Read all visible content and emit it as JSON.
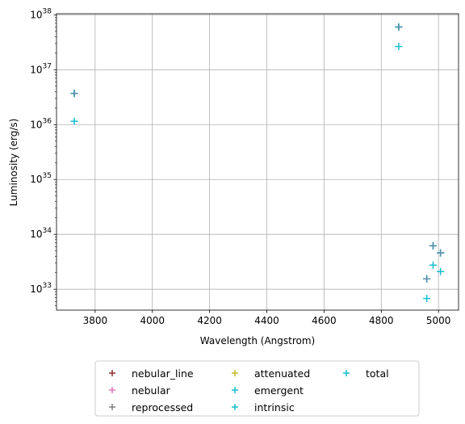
{
  "chart_data": {
    "type": "scatter",
    "xlabel": "Wavelength (Angstrom)",
    "ylabel": "Luminosity (erg/s)",
    "xlim": [
      3665,
      5070
    ],
    "ylog": true,
    "ylim_exp": [
      32.62,
      38.02
    ],
    "grid": true,
    "legend_position": "below",
    "x_ticks": [
      3800,
      4000,
      4200,
      4400,
      4600,
      4800,
      5000
    ],
    "x_tick_labels": [
      "3800",
      "4000",
      "4200",
      "4400",
      "4600",
      "4800",
      "5000"
    ],
    "y_ticks_exp": [
      33,
      34,
      35,
      36,
      37,
      38
    ],
    "y_tick_base": "10",
    "y_tick_exps": [
      "33",
      "34",
      "35",
      "36",
      "37",
      "38"
    ],
    "series": [
      {
        "name": "nebular_line",
        "color": "#8c2d2d",
        "x": [],
        "y": []
      },
      {
        "name": "nebular",
        "color": "#e377c2",
        "x": [],
        "y": []
      },
      {
        "name": "reprocessed",
        "color": "#7f7f7f",
        "x": [],
        "y": []
      },
      {
        "name": "attenuated",
        "color": "#bcbd22",
        "x": [],
        "y": []
      },
      {
        "name": "emergent",
        "color": "#17becf",
        "x": [
          3727,
          4861,
          4959,
          4981,
          5007
        ],
        "y": [
          3.7e+36,
          6e+37,
          1.55e+33,
          6.2e+33,
          4.6e+33
        ]
      },
      {
        "name": "intrinsic",
        "color": "#17becf",
        "x": [
          3727,
          4861,
          4959,
          4981,
          5007
        ],
        "y": [
          3.7e+36,
          6e+37,
          1.55e+33,
          6.2e+33,
          4.6e+33
        ]
      },
      {
        "name": "total",
        "color": "#17becf",
        "x": [
          3727,
          4861,
          4959,
          4981,
          5007
        ],
        "y": [
          1.15e+36,
          2.65e+37,
          6.8e+32,
          2.75e+33,
          2.1e+33
        ]
      }
    ]
  }
}
